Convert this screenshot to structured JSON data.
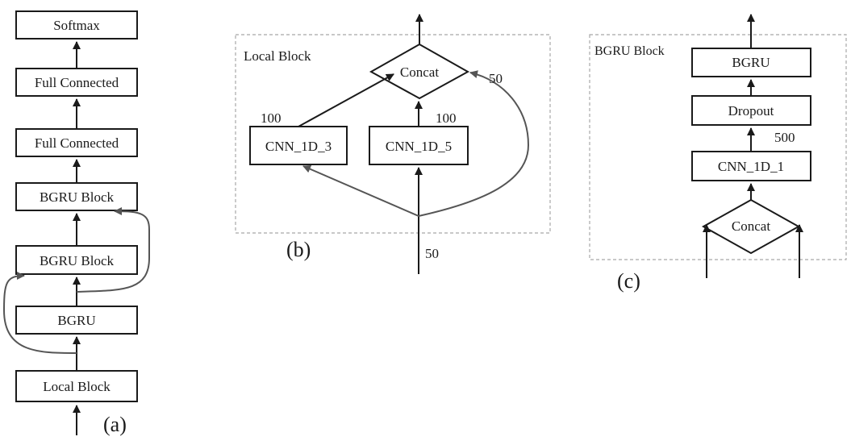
{
  "panel_a": {
    "nodes": {
      "softmax": "Softmax",
      "fc2": "Full Connected",
      "fc1": "Full Connected",
      "bgru_block2": "BGRU Block",
      "bgru_block1": "BGRU Block",
      "bgru": "BGRU",
      "local_block": "Local Block"
    },
    "caption": "(a)"
  },
  "panel_b": {
    "title": "Local Block",
    "nodes": {
      "concat": "Concat",
      "cnn3": "CNN_1D_3",
      "cnn5": "CNN_1D_5"
    },
    "edge_labels": {
      "cnn3_out": "100",
      "cnn5_out": "100",
      "skip": "50",
      "input": "50"
    },
    "caption": "(b)"
  },
  "panel_c": {
    "title": "BGRU Block",
    "nodes": {
      "bgru": "BGRU",
      "dropout": "Dropout",
      "cnn1": "CNN_1D_1",
      "concat": "Concat"
    },
    "edge_labels": {
      "cnn1_out": "500"
    },
    "caption": "(c)"
  },
  "colors": {
    "stroke": "#1a1a1a",
    "skip_stroke": "#555555",
    "dashed_border": "#a8a8a8",
    "background": "#ffffff"
  }
}
